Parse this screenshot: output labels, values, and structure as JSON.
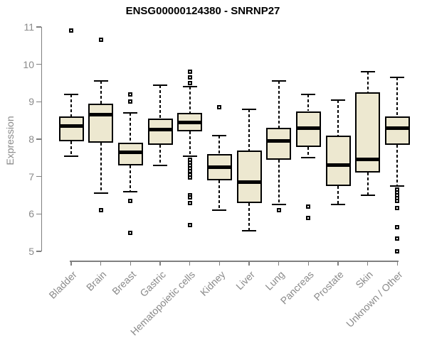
{
  "chart_data": {
    "type": "boxplot",
    "title": "ENSG00000124380 - SNRNP27",
    "ylabel": "Expression",
    "xlabel": "",
    "ylim": [
      5,
      11
    ],
    "yticks": [
      5,
      6,
      7,
      8,
      9,
      10,
      11
    ],
    "grid": false,
    "legend": false,
    "categories": [
      "Bladder",
      "Brain",
      "Breast",
      "Gastric",
      "Hematopoietic cells",
      "Kidney",
      "Liver",
      "Lung",
      "Pancreas",
      "Prostate",
      "Skin",
      "Unknown / Other"
    ],
    "boxes": [
      {
        "category": "Bladder",
        "whisker_low": 7.55,
        "q1": 7.95,
        "median": 8.35,
        "q3": 8.6,
        "whisker_high": 9.2,
        "outliers": [
          10.9
        ]
      },
      {
        "category": "Brain",
        "whisker_low": 6.55,
        "q1": 7.9,
        "median": 8.65,
        "q3": 8.95,
        "whisker_high": 9.55,
        "outliers": [
          10.65,
          6.1
        ]
      },
      {
        "category": "Breast",
        "whisker_low": 6.6,
        "q1": 7.3,
        "median": 7.65,
        "q3": 7.9,
        "whisker_high": 8.7,
        "outliers": [
          9.2,
          9.0,
          6.35,
          5.5
        ]
      },
      {
        "category": "Gastric",
        "whisker_low": 7.3,
        "q1": 7.85,
        "median": 8.25,
        "q3": 8.55,
        "whisker_high": 9.45,
        "outliers": []
      },
      {
        "category": "Hematopoietic cells",
        "whisker_low": 7.55,
        "q1": 8.2,
        "median": 8.45,
        "q3": 8.7,
        "whisker_high": 9.4,
        "outliers": [
          9.8,
          9.65,
          9.5,
          7.45,
          7.38,
          7.3,
          7.22,
          7.14,
          7.06,
          6.98,
          6.5,
          6.44,
          6.3,
          5.7
        ]
      },
      {
        "category": "Kidney",
        "whisker_low": 6.1,
        "q1": 6.9,
        "median": 7.25,
        "q3": 7.6,
        "whisker_high": 8.1,
        "outliers": [
          8.85
        ]
      },
      {
        "category": "Liver",
        "whisker_low": 5.55,
        "q1": 6.3,
        "median": 6.85,
        "q3": 7.7,
        "whisker_high": 8.8,
        "outliers": []
      },
      {
        "category": "Lung",
        "whisker_low": 6.25,
        "q1": 7.45,
        "median": 7.95,
        "q3": 8.3,
        "whisker_high": 9.55,
        "outliers": [
          6.1
        ]
      },
      {
        "category": "Pancreas",
        "whisker_low": 7.5,
        "q1": 7.8,
        "median": 8.3,
        "q3": 8.75,
        "whisker_high": 9.2,
        "outliers": [
          6.2,
          5.9
        ]
      },
      {
        "category": "Prostate",
        "whisker_low": 6.25,
        "q1": 6.75,
        "median": 7.3,
        "q3": 8.1,
        "whisker_high": 9.05,
        "outliers": []
      },
      {
        "category": "Skin",
        "whisker_low": 6.5,
        "q1": 7.1,
        "median": 7.45,
        "q3": 9.25,
        "whisker_high": 9.8,
        "outliers": []
      },
      {
        "category": "Unknown / Other",
        "whisker_low": 6.75,
        "q1": 7.85,
        "median": 8.3,
        "q3": 8.6,
        "whisker_high": 9.65,
        "outliers": [
          6.65,
          6.57,
          6.5,
          6.42,
          6.35,
          6.15,
          5.65,
          5.35,
          5.0
        ]
      }
    ]
  },
  "colors": {
    "box_fill": "#EDE8D0",
    "box_border": "#000000",
    "median": "#000000",
    "whisker": "#000000",
    "axis": "#808080",
    "tick_label": "#8A8A8A",
    "title": "#000000",
    "background": "#FFFFFF"
  }
}
